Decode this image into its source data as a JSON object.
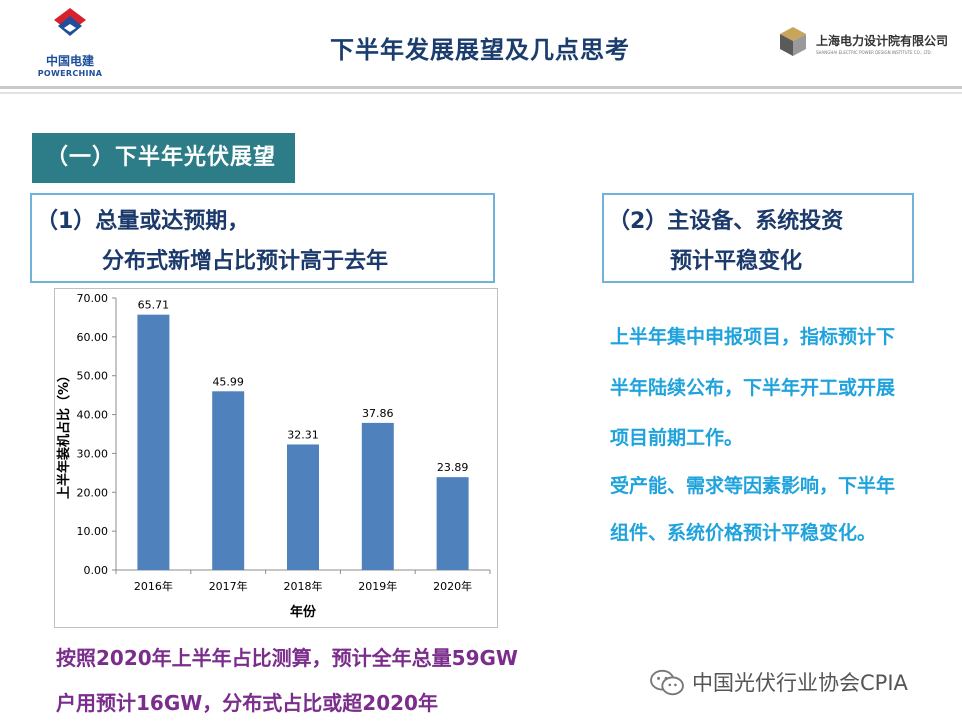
{
  "header": {
    "left_logo_cn": "中国电建",
    "left_logo_en": "POWERCHINA",
    "title": "下半年发展展望及几点思考",
    "right_logo_cn": "上海电力设计院有限公司",
    "right_logo_en": "SHANGHAI ELECTRIC POWER DESIGN INSTITUTE CO., LTD."
  },
  "section": {
    "title": "（一）下半年光伏展望"
  },
  "box1": {
    "line1": "（1）总量或达预期，",
    "line2": "分布式新增占比预计高于去年"
  },
  "box2": {
    "line1": "（2）主设备、系统投资",
    "line2": "预计平稳变化"
  },
  "right_text": [
    "上半年集中申报项目，指标预计下",
    "半年陆续公布，下半年开工或开展",
    "项目前期工作。",
    "受产能、需求等因素影响，下半年",
    "组件、系统价格预计平稳变化。"
  ],
  "bottom_text": [
    "按照2020年上半年占比测算，预计全年总量59GW",
    "户用预计16GW，分布式占比或超2020年"
  ],
  "watermark": {
    "text": "中国光伏行业协会CPIA"
  },
  "chart_data": {
    "type": "bar",
    "categories": [
      "2016年",
      "2017年",
      "2018年",
      "2019年",
      "2020年"
    ],
    "values": [
      65.71,
      45.99,
      32.31,
      37.86,
      23.89
    ],
    "value_labels": [
      "65.71",
      "45.99",
      "32.31",
      "37.86",
      "23.89"
    ],
    "xlabel": "年份",
    "ylabel": "上半年装机占比（%）",
    "ylim": [
      0,
      70
    ],
    "ticks": [
      "0.00",
      "10.00",
      "20.00",
      "30.00",
      "40.00",
      "50.00",
      "60.00",
      "70.00"
    ],
    "grid": false,
    "bar_color": "#4f81bd"
  },
  "colors": {
    "banner": "#2c7d88",
    "box_border": "#6fb3d9",
    "box_text": "#1b3a6b",
    "right_text": "#20a3dd",
    "bottom_text": "#7b2d8c",
    "title": "#1a3d6e"
  }
}
